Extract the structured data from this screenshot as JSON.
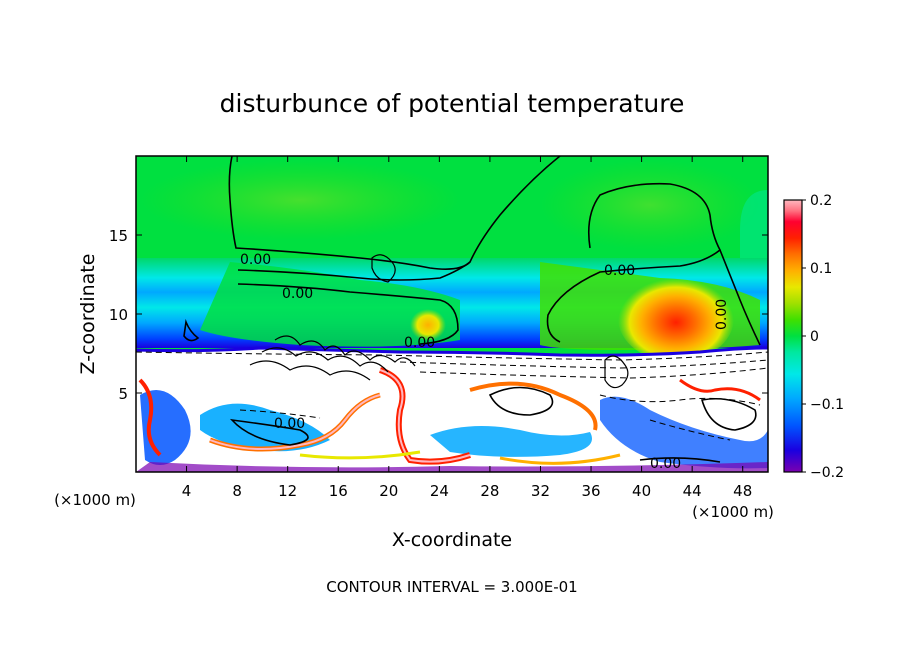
{
  "chart_data": {
    "type": "heatmap",
    "title": "disturbunce of potential temperature",
    "xlabel": "X-coordinate",
    "ylabel": "Z-coordinate",
    "x_unit_note": "(×1000 m)",
    "z_unit_note": "(×1000 m)",
    "x_ticks": [
      "4",
      "8",
      "12",
      "16",
      "20",
      "24",
      "28",
      "32",
      "36",
      "40",
      "44",
      "48"
    ],
    "z_ticks": [
      "5",
      "10",
      "15"
    ],
    "xlim": [
      0,
      50
    ],
    "zlim": [
      0,
      20
    ],
    "contour_interval_text": "CONTOUR INTERVAL = 3.000E-01",
    "contour_labels": [
      "0.00",
      "0.00",
      "0.00",
      "0.00",
      "0.00",
      "0.00",
      "0.00"
    ],
    "colorbar": {
      "range": [
        -0.2,
        0.2
      ],
      "tick_labels": [
        "0.2",
        "0.1",
        "0",
        "−0.1",
        "−0.2"
      ],
      "colors": [
        "#7a00b0",
        "#1a00e0",
        "#0055ff",
        "#00a8ff",
        "#00e8e8",
        "#00e8a0",
        "#00e040",
        "#40e000",
        "#a0e000",
        "#e8e800",
        "#ffb000",
        "#ff7000",
        "#ff2000",
        "#ff0030",
        "#ff7080",
        "#ffb8c0"
      ]
    }
  }
}
